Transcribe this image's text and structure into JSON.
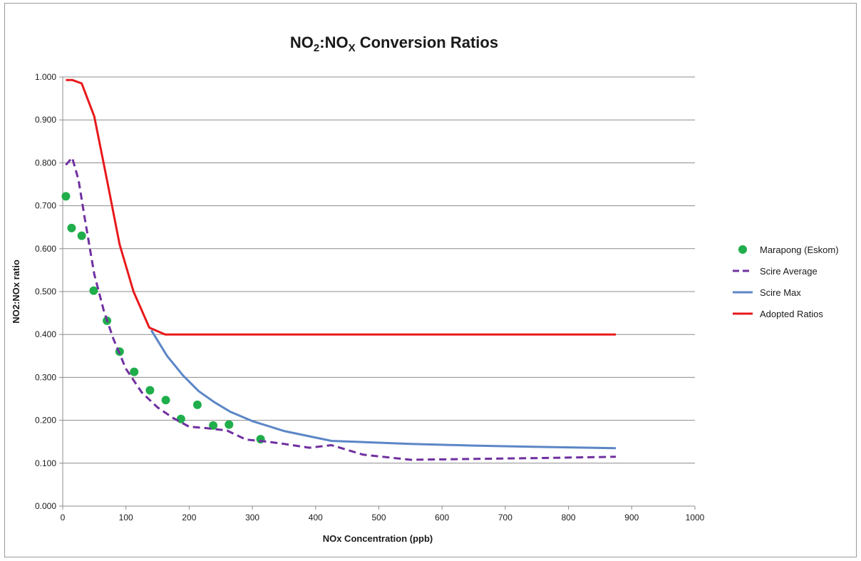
{
  "chart_data": {
    "type": "line",
    "title": {
      "main": "NO",
      "sub1": "2",
      "mid": ":NO",
      "sub2": "X",
      "tail": " Conversion Ratios"
    },
    "xlabel": "NOx Concentration (ppb)",
    "ylabel": "NO2:NOx ratio",
    "xlim": [
      0,
      1000
    ],
    "ylim": [
      0,
      1
    ],
    "xticks": [
      0,
      100,
      200,
      300,
      400,
      500,
      600,
      700,
      800,
      900,
      1000
    ],
    "yticks": [
      0,
      0.1,
      0.2,
      0.3,
      0.4,
      0.5,
      0.6,
      0.7,
      0.8,
      0.9,
      1.0
    ],
    "xtick_labels": [
      "0",
      "100",
      "200",
      "300",
      "400",
      "500",
      "600",
      "700",
      "800",
      "900",
      "1000"
    ],
    "ytick_labels": [
      "0.000",
      "0.100",
      "0.200",
      "0.300",
      "0.400",
      "0.500",
      "0.600",
      "0.700",
      "0.800",
      "0.900",
      "1.000"
    ],
    "grid": "horizontal",
    "legend_position": "right",
    "series": [
      {
        "name": "Marapong (Eskom)",
        "kind": "scatter",
        "color": "#1fae4b",
        "x": [
          5,
          14,
          30,
          49,
          70,
          90,
          113,
          138,
          163,
          187,
          213,
          238,
          263,
          313
        ],
        "y": [
          0.722,
          0.648,
          0.63,
          0.502,
          0.432,
          0.36,
          0.313,
          0.27,
          0.247,
          0.203,
          0.236,
          0.188,
          0.19,
          0.156
        ]
      },
      {
        "name": "Scire Average",
        "kind": "dashed-line",
        "color": "#7030a0",
        "x": [
          5,
          15,
          25,
          35,
          50,
          65,
          80,
          100,
          125,
          150,
          175,
          200,
          225,
          260,
          290,
          325,
          350,
          390,
          425,
          475,
          550,
          650,
          750,
          875
        ],
        "y": [
          0.795,
          0.812,
          0.76,
          0.67,
          0.54,
          0.455,
          0.39,
          0.32,
          0.265,
          0.23,
          0.205,
          0.185,
          0.182,
          0.176,
          0.155,
          0.15,
          0.145,
          0.136,
          0.142,
          0.12,
          0.108,
          0.11,
          0.112,
          0.115
        ]
      },
      {
        "name": "Scire Max",
        "kind": "line",
        "color": "#5b86c6",
        "x": [
          140,
          165,
          190,
          215,
          240,
          265,
          300,
          350,
          425,
          550,
          650,
          750,
          875
        ],
        "y": [
          0.41,
          0.35,
          0.305,
          0.268,
          0.242,
          0.22,
          0.198,
          0.175,
          0.152,
          0.145,
          0.141,
          0.138,
          0.135
        ]
      },
      {
        "name": "Adopted Ratios",
        "kind": "line",
        "color": "#e8191b",
        "x": [
          5,
          15,
          30,
          50,
          70,
          90,
          112,
          137,
          162,
          300,
          500,
          700,
          875
        ],
        "y": [
          0.993,
          0.993,
          0.985,
          0.908,
          0.76,
          0.61,
          0.5,
          0.416,
          0.4,
          0.4,
          0.4,
          0.4,
          0.4
        ]
      }
    ]
  }
}
